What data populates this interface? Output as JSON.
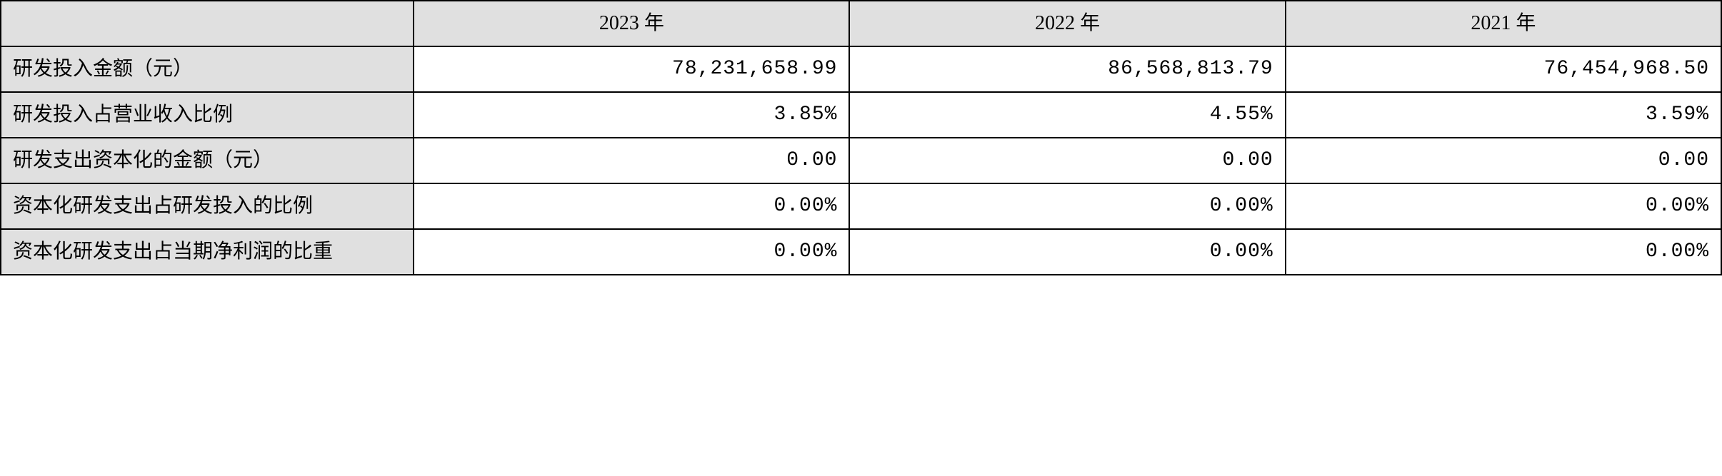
{
  "table": {
    "type": "table",
    "background_color": "#ffffff",
    "header_bg_color": "#e0e0e0",
    "label_bg_color": "#e0e0e0",
    "border_color": "#000000",
    "font_size": 28,
    "columns": {
      "blank": "",
      "year_2023": "2023 年",
      "year_2022": "2022 年",
      "year_2021": "2021 年"
    },
    "rows": [
      {
        "label": "研发投入金额（元）",
        "y2023": "78,231,658.99",
        "y2022": "86,568,813.79",
        "y2021": "76,454,968.50"
      },
      {
        "label": "研发投入占营业收入比例",
        "y2023": "3.85%",
        "y2022": "4.55%",
        "y2021": "3.59%"
      },
      {
        "label": "研发支出资本化的金额（元）",
        "y2023": "0.00",
        "y2022": "0.00",
        "y2021": "0.00"
      },
      {
        "label": "资本化研发支出占研发投入的比例",
        "y2023": "0.00%",
        "y2022": "0.00%",
        "y2021": "0.00%"
      },
      {
        "label": "资本化研发支出占当期净利润的比重",
        "y2023": "0.00%",
        "y2022": "0.00%",
        "y2021": "0.00%"
      }
    ]
  }
}
